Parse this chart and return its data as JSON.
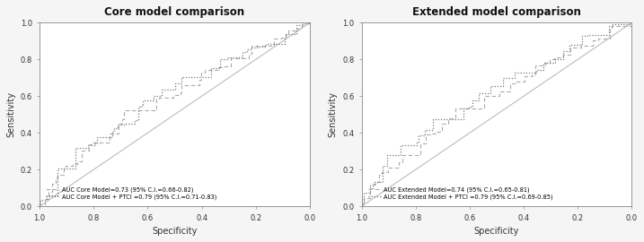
{
  "left_title": "Core model comparison",
  "right_title": "Extended model comparison",
  "xlabel": "Specificity",
  "ylabel": "Sensitivity",
  "xticks": [
    1.0,
    0.8,
    0.6,
    0.4,
    0.2,
    0.0
  ],
  "yticks": [
    0.0,
    0.2,
    0.4,
    0.6,
    0.8,
    1.0
  ],
  "left_legend1": "AUC Core Model=0.73 (95% C.I.=0.66-0.82)",
  "left_legend2": "AUC Core Model + PTCI =0.79 (95% C.I.=0.71-0.83)",
  "right_legend1": "AUC Extended Model=0.74 (95% C.I.=0.65-0.81)",
  "right_legend2": "AUC Extended Model + PTCI =0.79 (95% C.I.=0.69-0.85)",
  "line_color1": "#aaaaaa",
  "line_color2": "#777777",
  "diag_color": "#bbbbbb",
  "bg_color": "#f5f5f5",
  "panel_bg": "#ffffff",
  "title_fontsize": 8.5,
  "label_fontsize": 7,
  "tick_fontsize": 6,
  "legend_fontsize": 4.8
}
